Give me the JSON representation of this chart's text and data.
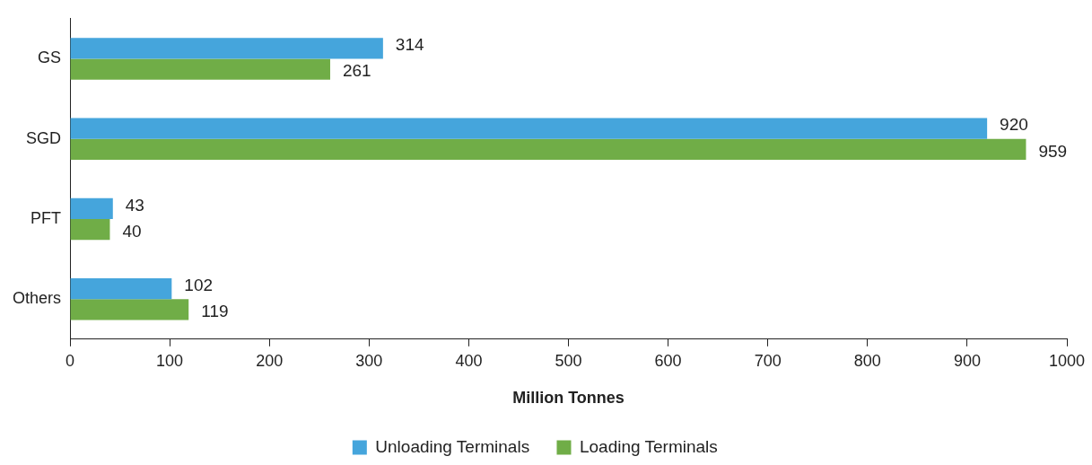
{
  "chart_data": {
    "type": "bar",
    "orientation": "horizontal",
    "xlabel": "Million Tonnes",
    "categories": [
      "GS",
      "SGD",
      "PFT",
      "Others"
    ],
    "series": [
      {
        "name": "Unloading Terminals",
        "color": "#45a5dc",
        "values": [
          314,
          920,
          43,
          102
        ]
      },
      {
        "name": "Loading Terminals",
        "color": "#70ad47",
        "values": [
          261,
          959,
          40,
          119
        ]
      }
    ],
    "xlim": [
      0,
      1000
    ],
    "xticks": [
      0,
      100,
      200,
      300,
      400,
      500,
      600,
      700,
      800,
      900,
      1000
    ],
    "data_labels": true,
    "legend": "bottom",
    "grid": false
  }
}
